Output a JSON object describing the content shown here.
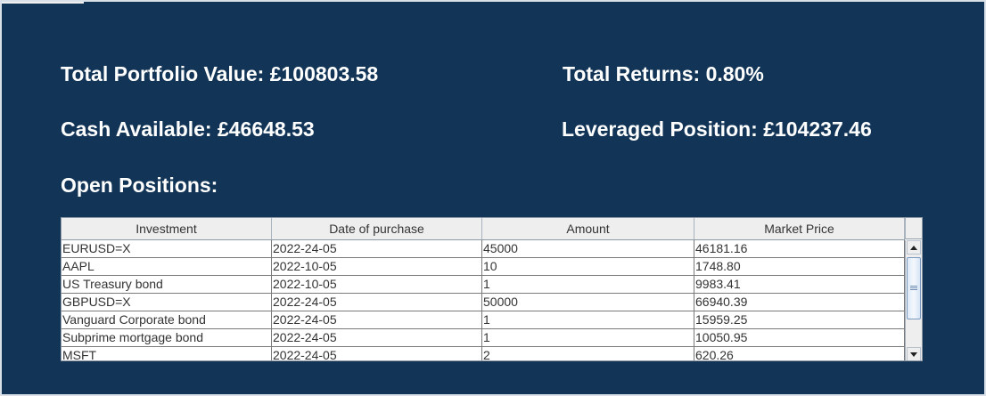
{
  "summary": {
    "total_portfolio_value": "Total Portfolio Value: £100803.58",
    "total_returns": "Total Returns: 0.80%",
    "cash_available": "Cash Available: £46648.53",
    "leveraged_position": "Leveraged Position: £104237.46",
    "open_positions_heading": "Open Positions:"
  },
  "table": {
    "columns": [
      "Investment",
      "Date of purchase",
      "Amount",
      "Market Price"
    ],
    "rows": [
      [
        "EURUSD=X",
        "2022-24-05",
        "45000",
        "46181.16"
      ],
      [
        "AAPL",
        "2022-10-05",
        "10",
        "1748.80"
      ],
      [
        "US Treasury bond",
        "2022-10-05",
        "1",
        "9983.41"
      ],
      [
        "GBPUSD=X",
        "2022-24-05",
        "50000",
        "66940.39"
      ],
      [
        "Vanguard Corporate bond",
        "2022-24-05",
        "1",
        "15959.25"
      ],
      [
        "Subprime mortgage bond",
        "2022-24-05",
        "1",
        "10050.95"
      ],
      [
        "MSFT",
        "2022-24-05",
        "2",
        "620.26"
      ]
    ]
  },
  "colors": {
    "background": "#123456",
    "text": "#ffffff",
    "table_header": "#eeeeee"
  },
  "icons": {
    "scroll_up": "arrow-up-icon",
    "scroll_down": "arrow-down-icon",
    "scroll_thumb": "scroll-thumb-grip-icon"
  }
}
